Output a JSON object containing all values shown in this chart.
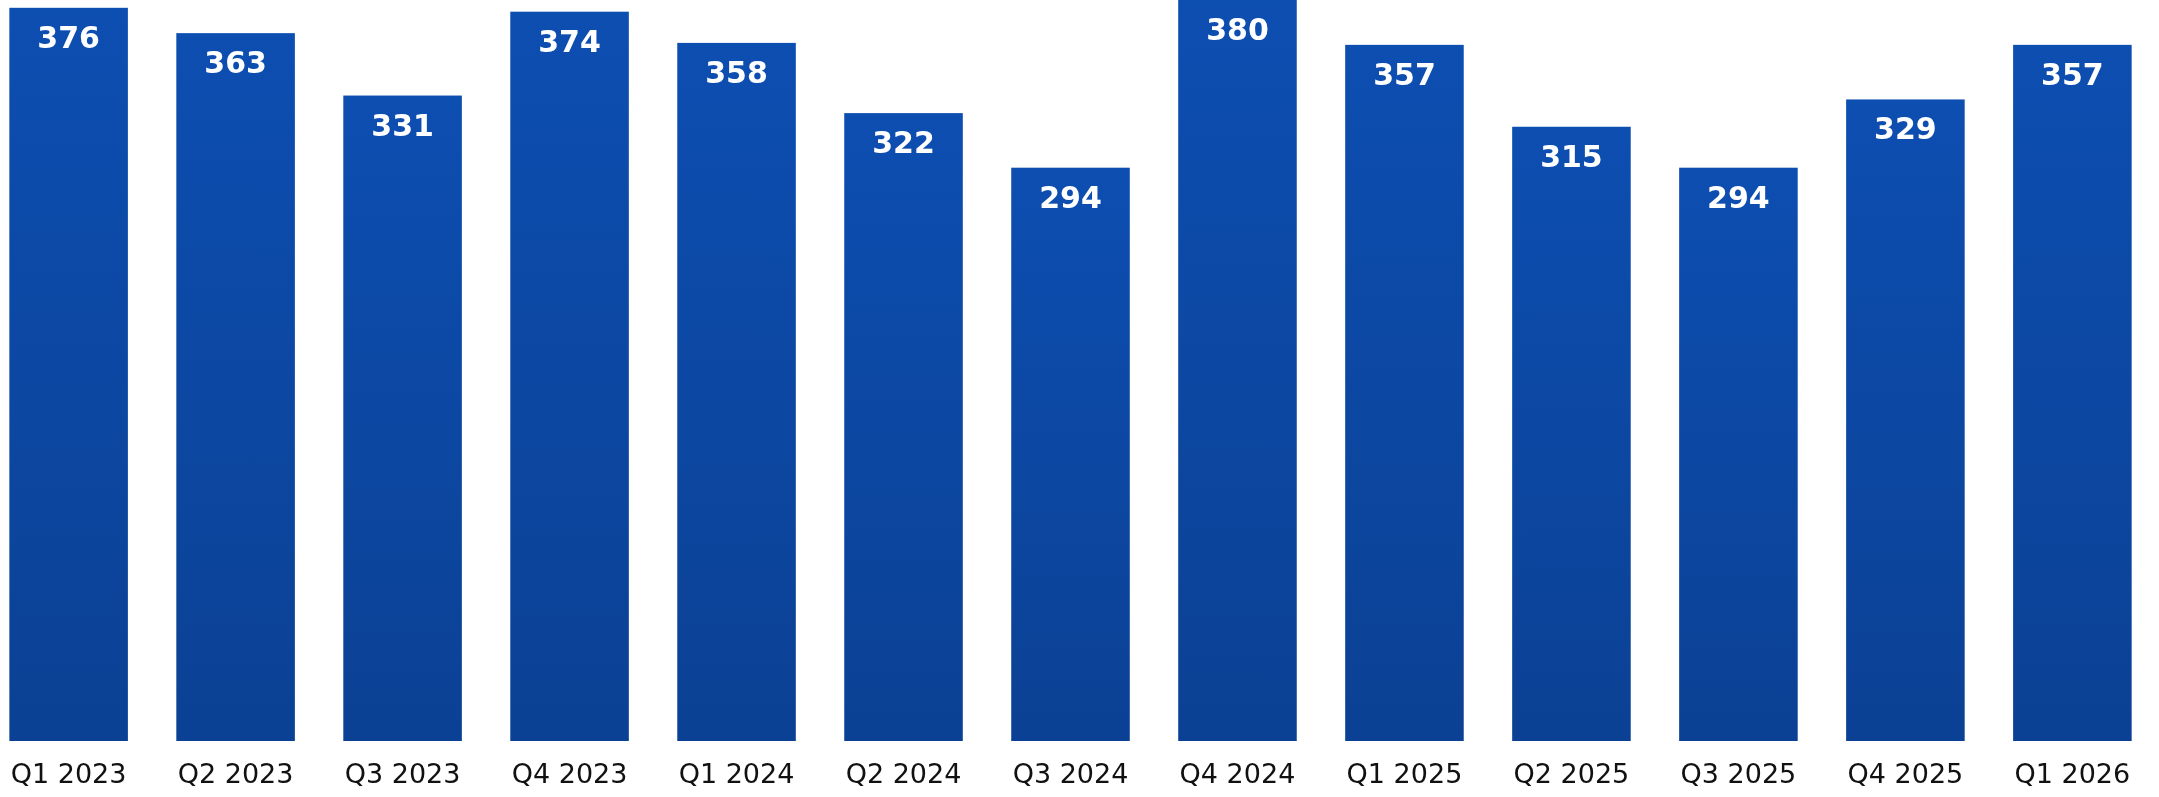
{
  "chart_data": {
    "type": "bar",
    "categories": [
      "Q1 2023",
      "Q2 2023",
      "Q3 2023",
      "Q4 2023",
      "Q1 2024",
      "Q2 2024",
      "Q3 2024",
      "Q4 2024",
      "Q1 2025",
      "Q2 2025",
      "Q3 2025",
      "Q4 2025",
      "Q1 2026"
    ],
    "values": [
      376,
      363,
      331,
      374,
      358,
      322,
      294,
      380,
      357,
      315,
      294,
      329,
      357
    ],
    "color": "#0c4aa8",
    "data_labels": true
  }
}
